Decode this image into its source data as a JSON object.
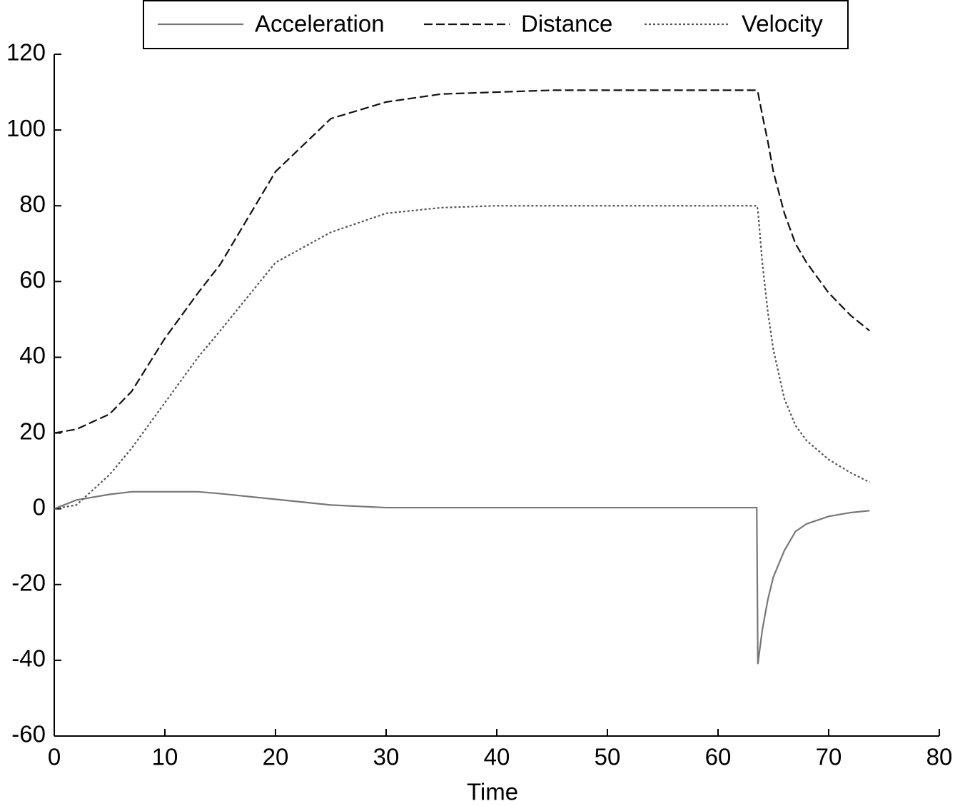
{
  "chart_data": {
    "type": "line",
    "xlabel": "Time",
    "x": [
      0,
      2,
      5,
      7,
      10,
      13,
      15,
      20,
      25,
      30,
      35,
      40,
      45,
      63.5,
      63.6,
      64,
      64.5,
      65,
      66,
      67,
      68,
      70,
      72,
      73.7
    ],
    "series": [
      {
        "name": "Acceleration",
        "color": "#777777",
        "dash": "solid",
        "values": [
          0,
          2.3,
          3.8,
          4.5,
          4.5,
          4.5,
          4,
          2.5,
          1,
          0.3,
          0.3,
          0.3,
          0.3,
          0.3,
          -41,
          -32,
          -24,
          -18,
          -11,
          -6,
          -4,
          -2,
          -1,
          -0.5
        ]
      },
      {
        "name": "Distance",
        "color": "#111111",
        "dash": "dashed",
        "values": [
          20,
          21,
          25,
          31,
          45,
          57,
          64.5,
          89,
          103,
          107.4,
          109.5,
          110,
          110.5,
          110.5,
          110,
          104,
          97,
          89,
          78,
          70,
          65,
          57,
          51,
          47
        ]
      },
      {
        "name": "Velocity",
        "color": "#555555",
        "dash": "dotted",
        "values": [
          0,
          1,
          9,
          16,
          28,
          40,
          47,
          65,
          73,
          78,
          79.5,
          80,
          80,
          80,
          79,
          65,
          52,
          42,
          29,
          22,
          18,
          13,
          9.5,
          7
        ]
      }
    ],
    "xlim": [
      0,
      80
    ],
    "xticks": [
      0,
      10,
      20,
      30,
      40,
      50,
      60,
      70,
      80
    ],
    "ylim": [
      -60,
      120
    ],
    "yticks": [
      -60,
      -40,
      -20,
      0,
      20,
      40,
      60,
      80,
      100,
      120
    ],
    "legend": "top"
  }
}
